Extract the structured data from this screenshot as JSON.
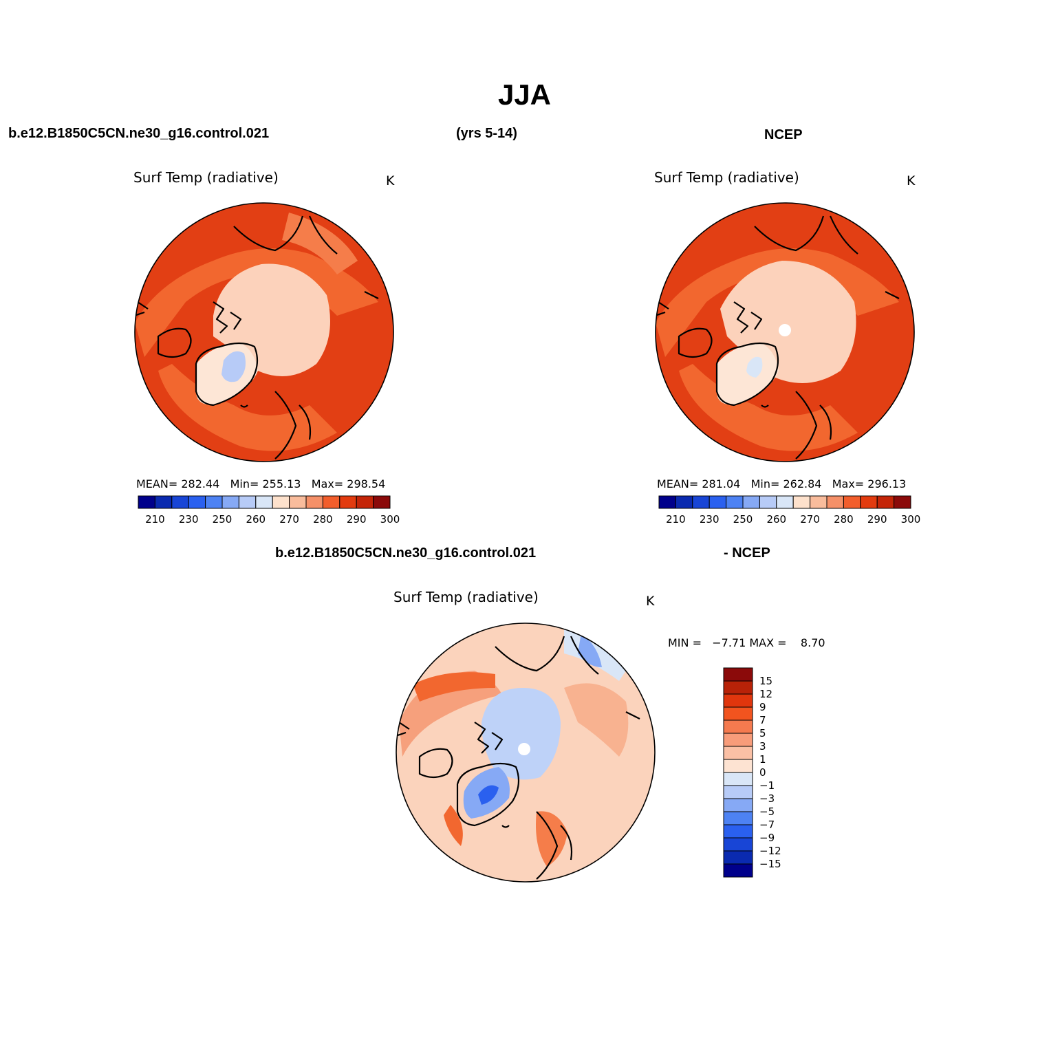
{
  "title": "JJA",
  "case_name": "b.e12.B1850C5CN.ne30_g16.control.021",
  "years": "(yrs 5-14)",
  "obs_name": "NCEP",
  "diff_case_name": "b.e12.B1850C5CN.ne30_g16.control.021",
  "diff_obs_name": "- NCEP",
  "panels": {
    "model": {
      "variable": "Surf Temp (radiative)",
      "units": "K",
      "stats": {
        "mean_label": "MEAN=",
        "mean": "282.44",
        "min_label": "Min=",
        "min": "255.13",
        "max_label": "Max=",
        "max": "298.54"
      }
    },
    "obs": {
      "variable": "Surf Temp (radiative)",
      "units": "K",
      "stats": {
        "mean_label": "MEAN=",
        "mean": "281.04",
        "min_label": "Min=",
        "min": "262.84",
        "max_label": "Max=",
        "max": "296.13"
      }
    },
    "diff": {
      "variable": "Surf Temp (radiative)",
      "units": "K",
      "stats": {
        "min_label": "MIN =",
        "min": "−7.71",
        "max_label": "MAX =",
        "max": "8.70"
      }
    }
  },
  "abs_colorbar": {
    "tick_labels": [
      "210",
      "230",
      "250",
      "260",
      "270",
      "280",
      "290",
      "300"
    ],
    "colors": [
      "#00008b",
      "#0a2ab0",
      "#1845d6",
      "#2a60ef",
      "#4d82f3",
      "#86a9f5",
      "#b7cbf7",
      "#d9e6f7",
      "#fde1cc",
      "#f9bc9c",
      "#f59068",
      "#f25e2c",
      "#e33b0f",
      "#c42508",
      "#8b0a0a"
    ]
  },
  "diff_colorbar": {
    "tick_labels": [
      "15",
      "12",
      "9",
      "7",
      "5",
      "3",
      "1",
      "0",
      "−1",
      "−3",
      "−5",
      "−7",
      "−9",
      "−12",
      "−15"
    ],
    "colors": [
      "#8b0a0a",
      "#b82208",
      "#e0360d",
      "#f2541f",
      "#f57a4f",
      "#f89c7a",
      "#fbc0a5",
      "#fde3d2",
      "#d9e6f7",
      "#b7cbf7",
      "#86a9f5",
      "#4d82f3",
      "#2a60ef",
      "#1845d6",
      "#0a2ab0",
      "#00008b"
    ]
  },
  "colors": {
    "ocean_warm": "#e23f14",
    "mid_lat_warm": "#f2672f",
    "arctic_cool": "#fcd2bb",
    "greenland_ice": "#b7cbf7",
    "diff_background": "#fbd3bc",
    "diff_arctic": "#bed2f8",
    "diff_strong_cold": "#2a60ef",
    "coast": "#000000"
  }
}
